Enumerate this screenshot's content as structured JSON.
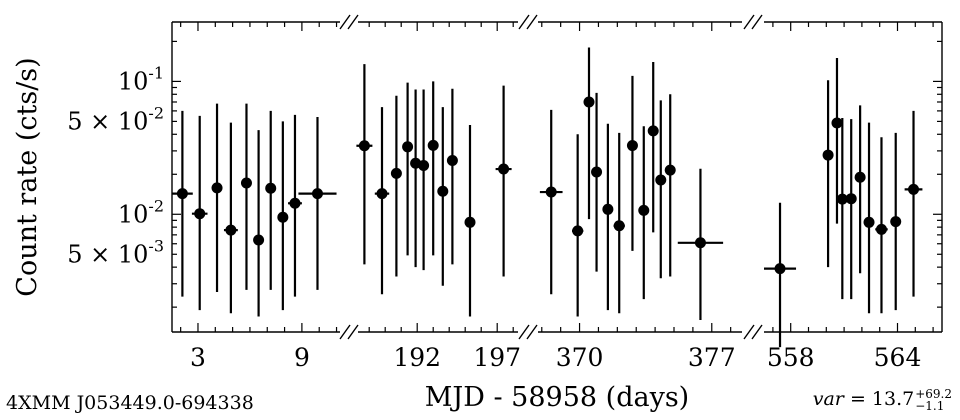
{
  "chart_data": {
    "type": "scatter",
    "source_name": "4XMM J053449.0-694338",
    "xlabel": "MJD - 58958 (days)",
    "ylabel": "Count rate (cts/s)",
    "y_scale": "log",
    "ylim": [
      0.0013,
      0.28
    ],
    "ytick_labels": [
      {
        "value": 0.1,
        "text": "10^{-1}"
      },
      {
        "value": 0.05,
        "text": "5 × 10^{-2}"
      },
      {
        "value": 0.01,
        "text": "10^{-2}"
      },
      {
        "value": 0.005,
        "text": "5 × 10^{-3}"
      }
    ],
    "broken_x_axis": true,
    "segments": [
      {
        "xlim": [
          1.5,
          11.2
        ],
        "xticks": [
          3,
          9
        ],
        "points": [
          {
            "x": 2.1,
            "xerr": 0.6,
            "y": 0.0143,
            "ylo": 0.0024,
            "yhi": 0.06
          },
          {
            "x": 3.1,
            "xerr": 0.45,
            "y": 0.0101,
            "ylo": 0.0019,
            "yhi": 0.055
          },
          {
            "x": 4.1,
            "xerr": 0,
            "y": 0.0158,
            "ylo": 0.0026,
            "yhi": 0.068
          },
          {
            "x": 4.9,
            "xerr": 0.4,
            "y": 0.0076,
            "ylo": 0.0018,
            "yhi": 0.049
          },
          {
            "x": 5.8,
            "xerr": 0,
            "y": 0.0172,
            "ylo": 0.0027,
            "yhi": 0.068
          },
          {
            "x": 6.5,
            "xerr": 0,
            "y": 0.0064,
            "ylo": 0.0017,
            "yhi": 0.043
          },
          {
            "x": 7.2,
            "xerr": 0,
            "y": 0.0157,
            "ylo": 0.0027,
            "yhi": 0.06
          },
          {
            "x": 7.9,
            "xerr": 0,
            "y": 0.0095,
            "ylo": 0.0019,
            "yhi": 0.05
          },
          {
            "x": 8.6,
            "xerr": 0.4,
            "y": 0.0121,
            "ylo": 0.0024,
            "yhi": 0.056
          },
          {
            "x": 9.9,
            "xerr": 1.1,
            "y": 0.0143,
            "ylo": 0.0027,
            "yhi": 0.054
          }
        ]
      },
      {
        "xlim": [
          188.3,
          198.3
        ],
        "xticks": [
          192,
          197
        ],
        "points": [
          {
            "x": 188.7,
            "xerr": 0.5,
            "y": 0.0328,
            "ylo": 0.0042,
            "yhi": 0.135
          },
          {
            "x": 189.8,
            "xerr": 0.45,
            "y": 0.0143,
            "ylo": 0.0025,
            "yhi": 0.064
          },
          {
            "x": 190.7,
            "xerr": 0,
            "y": 0.0203,
            "ylo": 0.0034,
            "yhi": 0.078
          },
          {
            "x": 191.4,
            "xerr": 0,
            "y": 0.0322,
            "ylo": 0.0049,
            "yhi": 0.098
          },
          {
            "x": 191.9,
            "xerr": 0,
            "y": 0.0242,
            "ylo": 0.004,
            "yhi": 0.087
          },
          {
            "x": 192.4,
            "xerr": 0,
            "y": 0.0233,
            "ylo": 0.0038,
            "yhi": 0.087
          },
          {
            "x": 193.0,
            "xerr": 0,
            "y": 0.033,
            "ylo": 0.0049,
            "yhi": 0.1
          },
          {
            "x": 193.6,
            "xerr": 0,
            "y": 0.0149,
            "ylo": 0.0029,
            "yhi": 0.064
          },
          {
            "x": 194.2,
            "xerr": 0,
            "y": 0.0254,
            "ylo": 0.0042,
            "yhi": 0.088
          },
          {
            "x": 195.3,
            "xerr": 0.3,
            "y": 0.0087,
            "ylo": 0.0017,
            "yhi": 0.047
          },
          {
            "x": 197.4,
            "xerr": 0.5,
            "y": 0.0219,
            "ylo": 0.0034,
            "yhi": 0.093
          }
        ]
      },
      {
        "xlim": [
          367.8,
          378.6
        ],
        "xticks": [
          370,
          377
        ],
        "points": [
          {
            "x": 368.5,
            "xerr": 0.6,
            "y": 0.0147,
            "ylo": 0.0025,
            "yhi": 0.061
          },
          {
            "x": 369.9,
            "xerr": 0.3,
            "y": 0.0075,
            "ylo": 0.0017,
            "yhi": 0.04
          },
          {
            "x": 370.5,
            "xerr": 0,
            "y": 0.07,
            "ylo": 0.0092,
            "yhi": 0.18
          },
          {
            "x": 370.9,
            "xerr": 0,
            "y": 0.0208,
            "ylo": 0.0037,
            "yhi": 0.082
          },
          {
            "x": 371.5,
            "xerr": 0,
            "y": 0.0109,
            "ylo": 0.0019,
            "yhi": 0.048
          },
          {
            "x": 372.1,
            "xerr": 0.3,
            "y": 0.0082,
            "ylo": 0.0018,
            "yhi": 0.041
          },
          {
            "x": 372.8,
            "xerr": 0,
            "y": 0.0329,
            "ylo": 0.0053,
            "yhi": 0.11
          },
          {
            "x": 373.4,
            "xerr": 0,
            "y": 0.0107,
            "ylo": 0.0023,
            "yhi": 0.046
          },
          {
            "x": 373.9,
            "xerr": 0,
            "y": 0.0424,
            "ylo": 0.0073,
            "yhi": 0.14
          },
          {
            "x": 374.3,
            "xerr": 0,
            "y": 0.0181,
            "ylo": 0.0033,
            "yhi": 0.072
          },
          {
            "x": 374.8,
            "xerr": 0,
            "y": 0.0215,
            "ylo": 0.0034,
            "yhi": 0.08
          },
          {
            "x": 376.4,
            "xerr": 1.2,
            "y": 0.0061,
            "ylo": 0.0016,
            "yhi": 0.022
          }
        ]
      },
      {
        "xlim": [
          556.5,
          566.5
        ],
        "xticks": [
          558,
          564
        ],
        "points": [
          {
            "x": 557.4,
            "xerr": 0.9,
            "y": 0.0039,
            "ylo": 0.001,
            "yhi": 0.0122
          },
          {
            "x": 560.1,
            "xerr": 0,
            "y": 0.0279,
            "ylo": 0.004,
            "yhi": 0.102
          },
          {
            "x": 560.6,
            "xerr": 0,
            "y": 0.0486,
            "ylo": 0.0085,
            "yhi": 0.15
          },
          {
            "x": 560.9,
            "xerr": 0,
            "y": 0.013,
            "ylo": 0.0023,
            "yhi": 0.053
          },
          {
            "x": 561.4,
            "xerr": 0,
            "y": 0.0131,
            "ylo": 0.0023,
            "yhi": 0.052
          },
          {
            "x": 561.9,
            "xerr": 0,
            "y": 0.019,
            "ylo": 0.0036,
            "yhi": 0.066
          },
          {
            "x": 562.4,
            "xerr": 0,
            "y": 0.0087,
            "ylo": 0.0018,
            "yhi": 0.049
          },
          {
            "x": 563.1,
            "xerr": 0.35,
            "y": 0.0077,
            "ylo": 0.0018,
            "yhi": 0.038
          },
          {
            "x": 563.9,
            "xerr": 0,
            "y": 0.0088,
            "ylo": 0.0019,
            "yhi": 0.041
          },
          {
            "x": 564.9,
            "xerr": 0.5,
            "y": 0.0154,
            "ylo": 0.0024,
            "yhi": 0.06
          }
        ]
      }
    ],
    "annotation": {
      "var_label": "var",
      "equals": " = ",
      "value": "13.7",
      "err_plus": "+69.2",
      "err_minus": "−1.1"
    },
    "colors": {
      "marker": "#000000",
      "axes": "#000000",
      "background": "#ffffff"
    },
    "grid": false,
    "legend": "none"
  }
}
